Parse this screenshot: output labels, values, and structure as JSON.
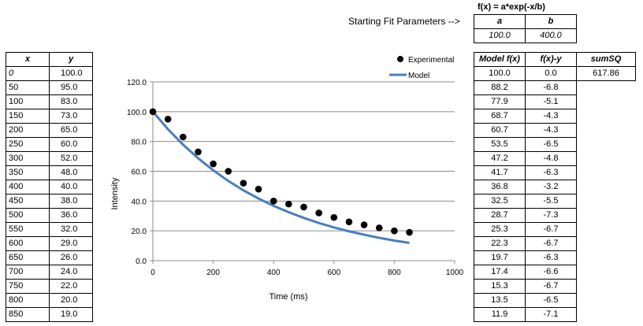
{
  "formula_label": "f(x) = a*exp(-x/b)",
  "starting_label": "Starting Fit Parameters  -->",
  "params": {
    "a_header": "a",
    "b_header": "b",
    "a_value": "100.0",
    "b_value": "400.0"
  },
  "data_table": {
    "headers": [
      "x",
      "y"
    ],
    "rows": [
      [
        "0",
        "100.0"
      ],
      [
        "50",
        "95.0"
      ],
      [
        "100",
        "83.0"
      ],
      [
        "150",
        "73.0"
      ],
      [
        "200",
        "65.0"
      ],
      [
        "250",
        "60.0"
      ],
      [
        "300",
        "52.0"
      ],
      [
        "350",
        "48.0"
      ],
      [
        "400",
        "40.0"
      ],
      [
        "450",
        "38.0"
      ],
      [
        "500",
        "36.0"
      ],
      [
        "550",
        "32.0"
      ],
      [
        "600",
        "29.0"
      ],
      [
        "650",
        "26.0"
      ],
      [
        "700",
        "24.0"
      ],
      [
        "750",
        "22.0"
      ],
      [
        "800",
        "20.0"
      ],
      [
        "850",
        "19.0"
      ]
    ]
  },
  "model_table": {
    "headers": [
      "Model f(x)",
      "f(x)-y",
      "sumSQ"
    ],
    "rows": [
      [
        "100.0",
        "0.0"
      ],
      [
        "88.2",
        "-6.8"
      ],
      [
        "77.9",
        "-5.1"
      ],
      [
        "68.7",
        "-4.3"
      ],
      [
        "60.7",
        "-4.3"
      ],
      [
        "53.5",
        "-6.5"
      ],
      [
        "47.2",
        "-4.8"
      ],
      [
        "41.7",
        "-6.3"
      ],
      [
        "36.8",
        "-3.2"
      ],
      [
        "32.5",
        "-5.5"
      ],
      [
        "28.7",
        "-7.3"
      ],
      [
        "25.3",
        "-6.7"
      ],
      [
        "22.3",
        "-6.7"
      ],
      [
        "19.7",
        "-6.3"
      ],
      [
        "17.4",
        "-6.6"
      ],
      [
        "15.3",
        "-6.7"
      ],
      [
        "13.5",
        "-6.5"
      ],
      [
        "11.9",
        "-7.1"
      ]
    ],
    "sumsq_value": "617.86"
  },
  "chart_data": {
    "type": "scatter",
    "xlabel": "Time (ms)",
    "ylabel": "Intensity",
    "xlim": [
      0,
      1000
    ],
    "ylim": [
      0,
      120
    ],
    "xticks": [
      "0",
      "200",
      "400",
      "600",
      "800",
      "1000"
    ],
    "yticks": [
      "0.0",
      "20.0",
      "40.0",
      "60.0",
      "80.0",
      "100.0",
      "120.0"
    ],
    "grid": "horizontal",
    "legend_position": "top-right",
    "series": [
      {
        "name": "Experimental",
        "kind": "scatter",
        "color": "#000000",
        "x": [
          0,
          50,
          100,
          150,
          200,
          250,
          300,
          350,
          400,
          450,
          500,
          550,
          600,
          650,
          700,
          750,
          800,
          850
        ],
        "y": [
          100,
          95,
          83,
          73,
          65,
          60,
          52,
          48,
          40,
          38,
          36,
          32,
          29,
          26,
          24,
          22,
          20,
          19
        ]
      },
      {
        "name": "Model",
        "kind": "line",
        "color": "#4a7ebb",
        "x": [
          0,
          50,
          100,
          150,
          200,
          250,
          300,
          350,
          400,
          450,
          500,
          550,
          600,
          650,
          700,
          750,
          800,
          850
        ],
        "y": [
          100,
          88.2,
          77.9,
          68.7,
          60.7,
          53.5,
          47.2,
          41.7,
          36.8,
          32.5,
          28.7,
          25.3,
          22.3,
          19.7,
          17.4,
          15.3,
          13.5,
          11.9
        ]
      }
    ]
  }
}
